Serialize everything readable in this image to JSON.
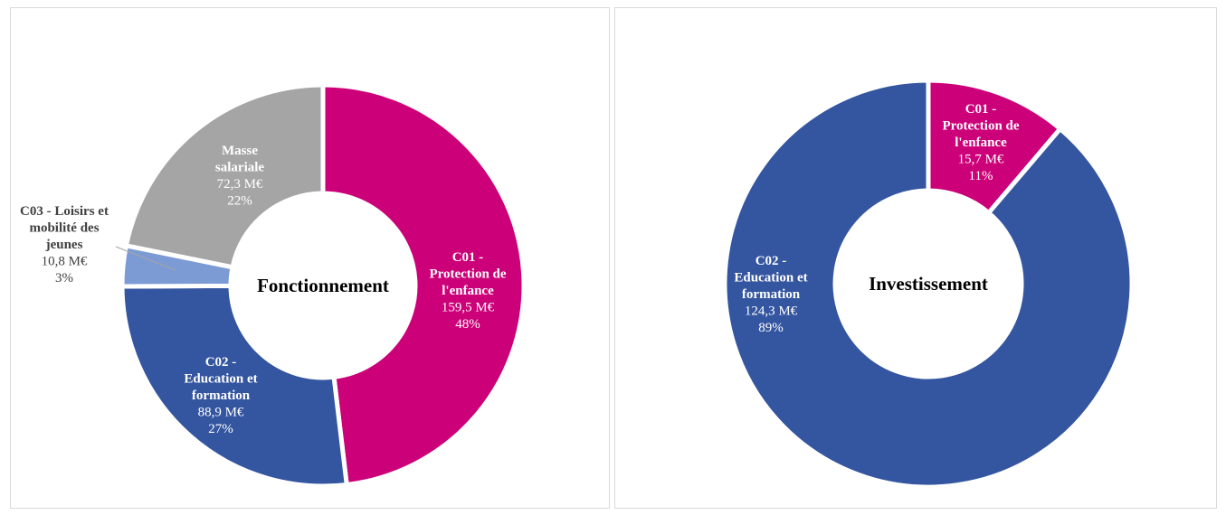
{
  "chart_data": [
    {
      "type": "pie",
      "variant": "donut",
      "center_label": "Fonctionnement",
      "slices": [
        {
          "category": [
            "C01 -",
            "Protection de",
            "l'enfance"
          ],
          "value_label": "159,5 M€",
          "percent_label": "48%",
          "value": 159.5,
          "percent": 48,
          "color": "#cc0078"
        },
        {
          "category": [
            "C02 -",
            "Education et",
            "formation"
          ],
          "value_label": "88,9 M€",
          "percent_label": "27%",
          "value": 88.9,
          "percent": 27,
          "color": "#34559f"
        },
        {
          "category": [
            "C03 - Loisirs et",
            "mobilité des",
            "jeunes"
          ],
          "value_label": "10,8 M€",
          "percent_label": "3%",
          "value": 10.8,
          "percent": 3,
          "color": "#7c9bd5"
        },
        {
          "category": [
            "Masse",
            "salariale"
          ],
          "value_label": "72,3 M€",
          "percent_label": "22%",
          "value": 72.3,
          "percent": 22,
          "color": "#a5a5a5"
        }
      ]
    },
    {
      "type": "pie",
      "variant": "donut",
      "center_label": "Investissement",
      "slices": [
        {
          "category": [
            "C01 -",
            "Protection de",
            "l'enfance"
          ],
          "value_label": "15,7 M€",
          "percent_label": "11%",
          "value": 15.7,
          "percent": 11,
          "color": "#cc0078"
        },
        {
          "category": [
            "C02 -",
            "Education et",
            "formation"
          ],
          "value_label": "124,3 M€",
          "percent_label": "89%",
          "value": 124.3,
          "percent": 89,
          "color": "#34559f"
        }
      ]
    }
  ]
}
